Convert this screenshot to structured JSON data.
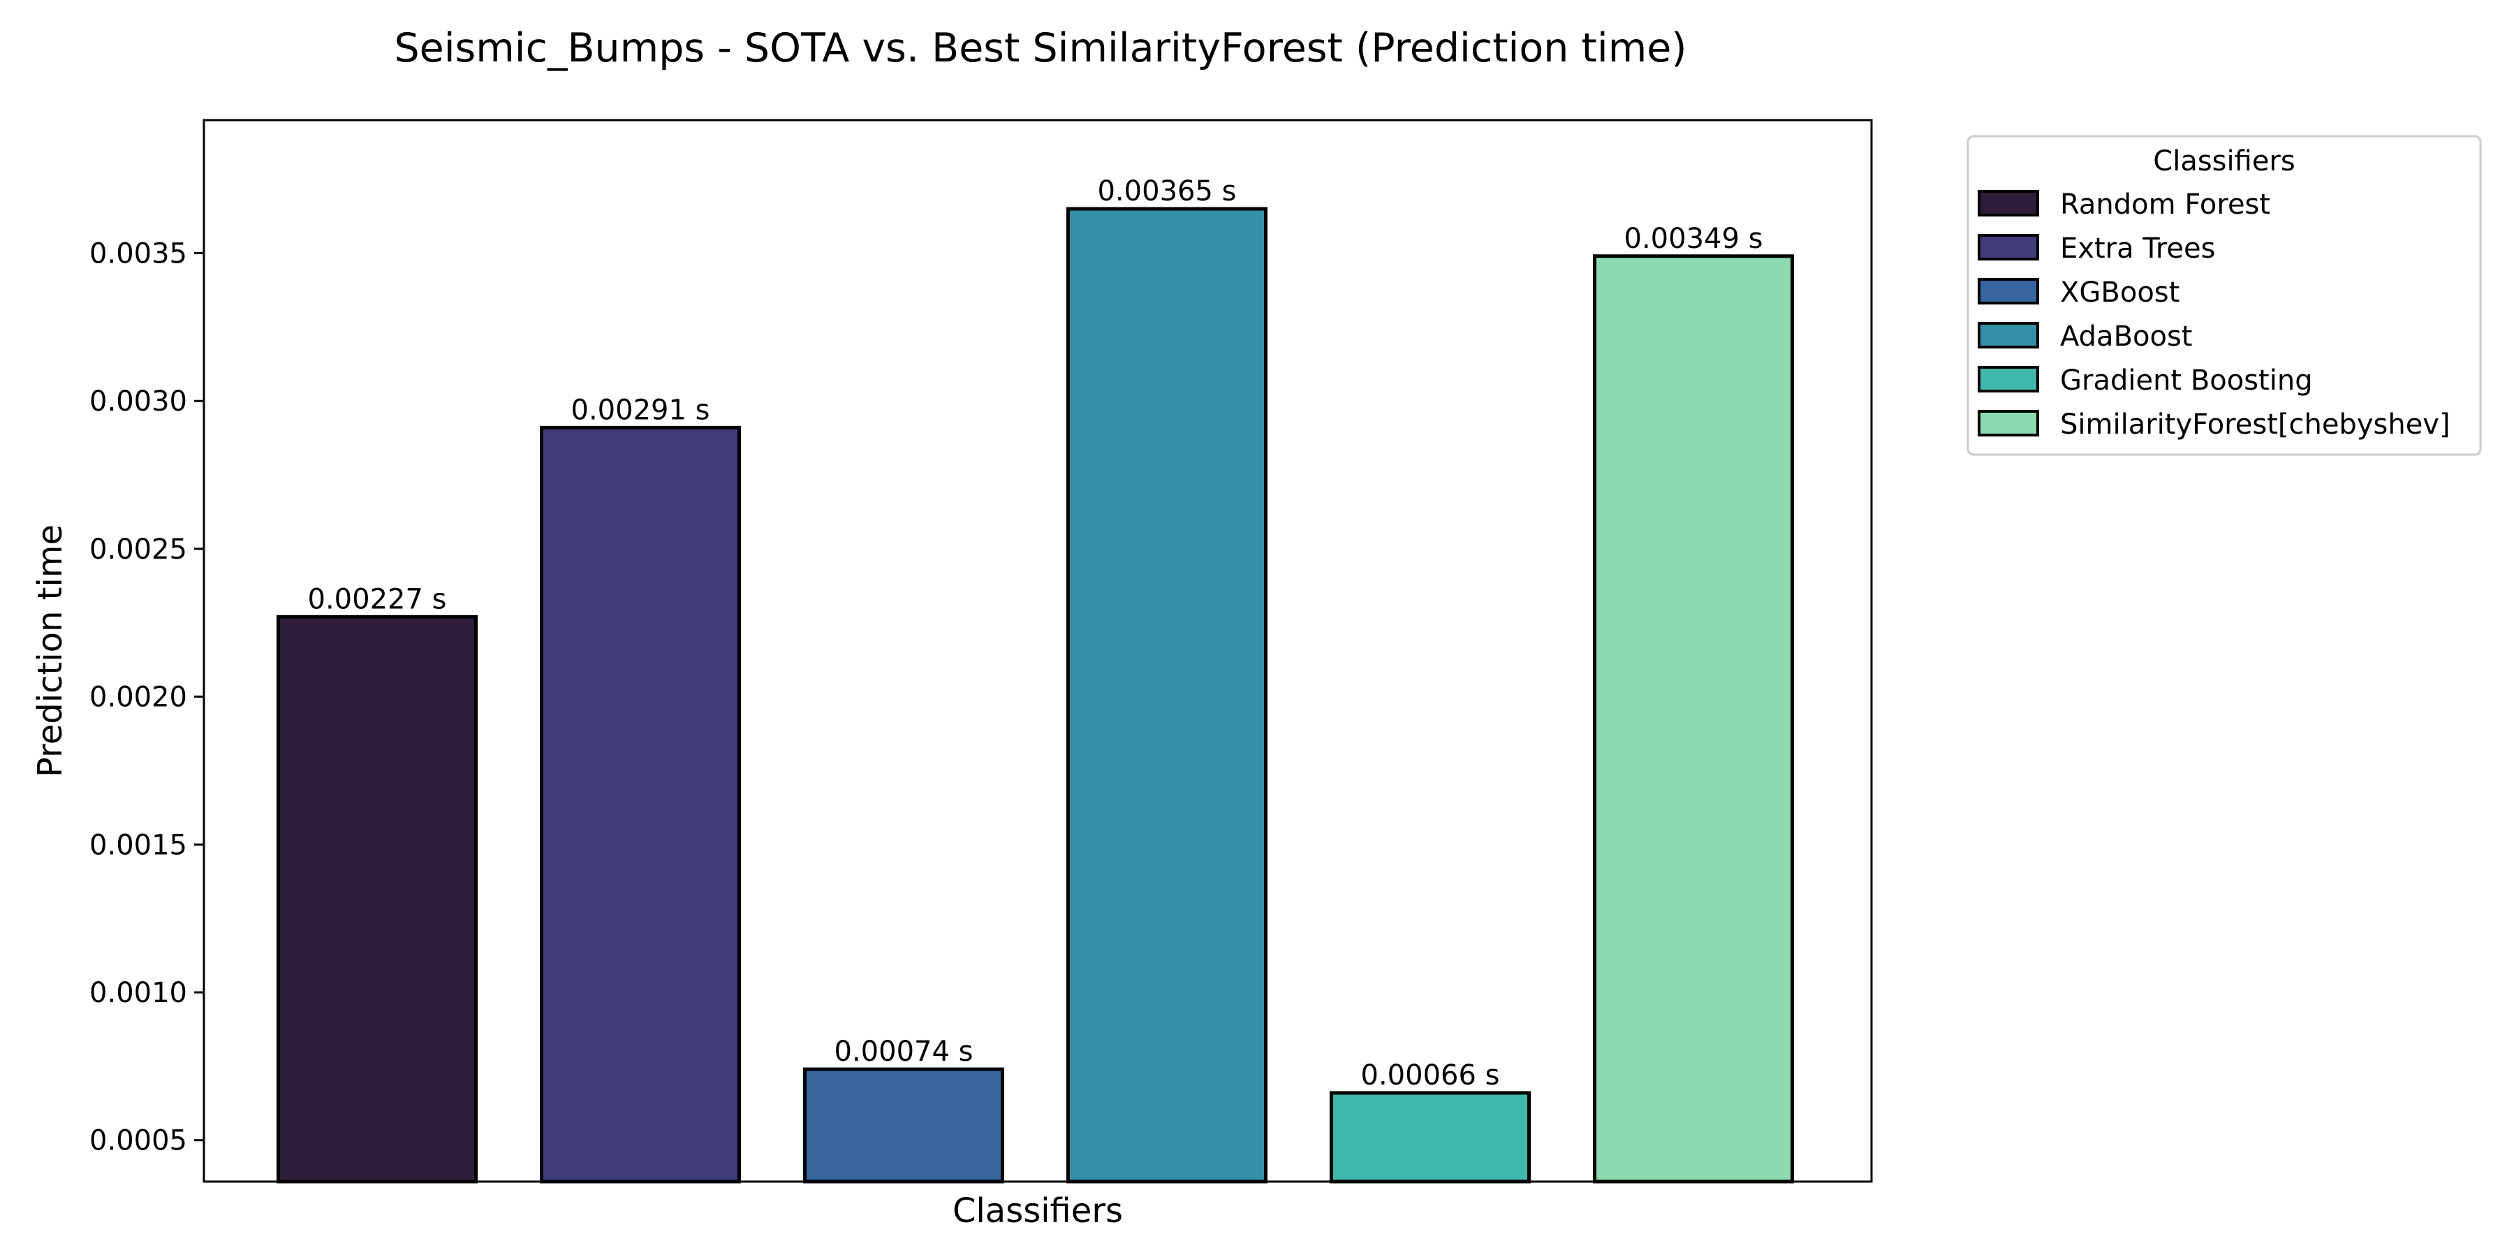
{
  "chart_data": {
    "type": "bar",
    "title": "Seismic_Bumps - SOTA vs. Best SimilarityForest (Prediction time)",
    "xlabel": "Classifiers",
    "ylabel": "Prediction time",
    "categories": [
      "Random Forest",
      "Extra Trees",
      "XGBoost",
      "AdaBoost",
      "Gradient Boosting",
      "SimilarityForest[chebyshev]"
    ],
    "values": [
      0.00227,
      0.00291,
      0.00074,
      0.00365,
      0.00066,
      0.00349
    ],
    "value_labels": [
      "0.00227 s",
      "0.00291 s",
      "0.00074 s",
      "0.00365 s",
      "0.00066 s",
      "0.00349 s"
    ],
    "colors": [
      "#2e1e3b",
      "#413d7b",
      "#37659e",
      "#348fa7",
      "#40b7ad",
      "#8dd9b0"
    ],
    "ylim": [
      0.00036,
      0.00395
    ],
    "yticks": [
      0.0005,
      0.001,
      0.0015,
      0.002,
      0.0025,
      0.003,
      0.0035
    ],
    "ytick_labels": [
      "0.0005",
      "0.0010",
      "0.0015",
      "0.0020",
      "0.0025",
      "0.0030",
      "0.0035"
    ],
    "legend": {
      "title": "Classifiers",
      "placement": "outside-right",
      "entries": [
        "Random Forest",
        "Extra Trees",
        "XGBoost",
        "AdaBoost",
        "Gradient Boosting",
        "SimilarityForest[chebyshev]"
      ]
    },
    "grid": false
  }
}
